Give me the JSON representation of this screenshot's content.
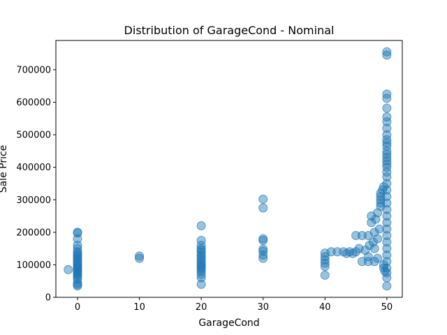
{
  "chart_data": {
    "type": "scatter",
    "title": "Distribution of GarageCond - Nominal",
    "xlabel": "GarageCond",
    "ylabel": "Sale Price",
    "xlim": [
      -3.5,
      52.5
    ],
    "ylim": [
      0,
      790000
    ],
    "x_ticks": [
      0,
      10,
      20,
      30,
      40,
      50
    ],
    "x_tick_labels": [
      "0",
      "10",
      "20",
      "30",
      "40",
      "50"
    ],
    "y_ticks": [
      0,
      100000,
      200000,
      300000,
      400000,
      500000,
      600000,
      700000
    ],
    "y_tick_labels": [
      "0",
      "100000",
      "200000",
      "300000",
      "400000",
      "500000",
      "600000",
      "700000"
    ],
    "grid": false,
    "marker_color": "#1f77b4",
    "marker_alpha": 0.45,
    "points": [
      [
        0,
        35000
      ],
      [
        0,
        39000
      ],
      [
        0,
        44000
      ],
      [
        0,
        55000
      ],
      [
        0,
        62000
      ],
      [
        0,
        68000
      ],
      [
        0,
        72000
      ],
      [
        0,
        76000
      ],
      [
        0,
        80000
      ],
      [
        0,
        84000
      ],
      [
        0,
        88000
      ],
      [
        0,
        92000
      ],
      [
        0,
        95000
      ],
      [
        0,
        100000
      ],
      [
        0,
        105000
      ],
      [
        0,
        110000
      ],
      [
        0,
        115000
      ],
      [
        0,
        120000
      ],
      [
        0,
        125000
      ],
      [
        0,
        130000
      ],
      [
        0,
        136000
      ],
      [
        0,
        140000
      ],
      [
        0,
        150000
      ],
      [
        0,
        160000
      ],
      [
        0,
        180000
      ],
      [
        0,
        198000
      ],
      [
        0,
        200000
      ],
      [
        -1.5,
        85000
      ],
      [
        10,
        120000
      ],
      [
        10,
        127000
      ],
      [
        20,
        40000
      ],
      [
        20,
        60000
      ],
      [
        20,
        70000
      ],
      [
        20,
        78000
      ],
      [
        20,
        85000
      ],
      [
        20,
        90000
      ],
      [
        20,
        95000
      ],
      [
        20,
        100000
      ],
      [
        20,
        105000
      ],
      [
        20,
        112000
      ],
      [
        20,
        118000
      ],
      [
        20,
        125000
      ],
      [
        20,
        130000
      ],
      [
        20,
        138000
      ],
      [
        20,
        145000
      ],
      [
        20,
        150000
      ],
      [
        20,
        160000
      ],
      [
        20,
        175000
      ],
      [
        20,
        220000
      ],
      [
        30,
        120000
      ],
      [
        30,
        130000
      ],
      [
        30,
        142000
      ],
      [
        30,
        148000
      ],
      [
        30,
        175000
      ],
      [
        30,
        180000
      ],
      [
        30,
        275000
      ],
      [
        30,
        302000
      ],
      [
        40,
        68000
      ],
      [
        40,
        95000
      ],
      [
        40,
        105000
      ],
      [
        40,
        115000
      ],
      [
        40,
        125000
      ],
      [
        40,
        136000
      ],
      [
        41,
        140000
      ],
      [
        42,
        140000
      ],
      [
        43,
        140000
      ],
      [
        43.5,
        135000
      ],
      [
        44,
        140000
      ],
      [
        44.5,
        135000
      ],
      [
        45,
        140000
      ],
      [
        45,
        190000
      ],
      [
        45.5,
        150000
      ],
      [
        46,
        190000
      ],
      [
        46,
        110000
      ],
      [
        46.5,
        145000
      ],
      [
        47,
        190000
      ],
      [
        47,
        125000
      ],
      [
        47,
        110000
      ],
      [
        47.2,
        160000
      ],
      [
        47.5,
        230000
      ],
      [
        47.5,
        250000
      ],
      [
        47.8,
        170000
      ],
      [
        48,
        200000
      ],
      [
        48,
        110000
      ],
      [
        48,
        150000
      ],
      [
        48.2,
        240000
      ],
      [
        48.5,
        260000
      ],
      [
        48.5,
        180000
      ],
      [
        48.5,
        120000
      ],
      [
        48.8,
        210000
      ],
      [
        49,
        280000
      ],
      [
        49,
        290000
      ],
      [
        49,
        300000
      ],
      [
        49,
        310000
      ],
      [
        49,
        320000
      ],
      [
        49.3,
        330000
      ],
      [
        49.5,
        340000
      ],
      [
        49.5,
        100000
      ],
      [
        49.5,
        90000
      ],
      [
        49.7,
        80000
      ],
      [
        50,
        35000
      ],
      [
        50,
        60000
      ],
      [
        50,
        75000
      ],
      [
        50,
        90000
      ],
      [
        50,
        110000
      ],
      [
        50,
        130000
      ],
      [
        50,
        150000
      ],
      [
        50,
        170000
      ],
      [
        50,
        190000
      ],
      [
        50,
        210000
      ],
      [
        50,
        230000
      ],
      [
        50,
        250000
      ],
      [
        50,
        270000
      ],
      [
        50,
        290000
      ],
      [
        50,
        310000
      ],
      [
        50,
        330000
      ],
      [
        50,
        350000
      ],
      [
        50,
        370000
      ],
      [
        50,
        385000
      ],
      [
        50,
        400000
      ],
      [
        50,
        410000
      ],
      [
        50,
        420000
      ],
      [
        50,
        430000
      ],
      [
        50,
        440000
      ],
      [
        50,
        450000
      ],
      [
        50,
        465000
      ],
      [
        50,
        475000
      ],
      [
        50,
        485000
      ],
      [
        50,
        500000
      ],
      [
        50,
        520000
      ],
      [
        50,
        540000
      ],
      [
        50,
        555000
      ],
      [
        50,
        582000
      ],
      [
        50,
        612000
      ],
      [
        50,
        625000
      ],
      [
        50,
        745000
      ],
      [
        50,
        755000
      ]
    ]
  }
}
